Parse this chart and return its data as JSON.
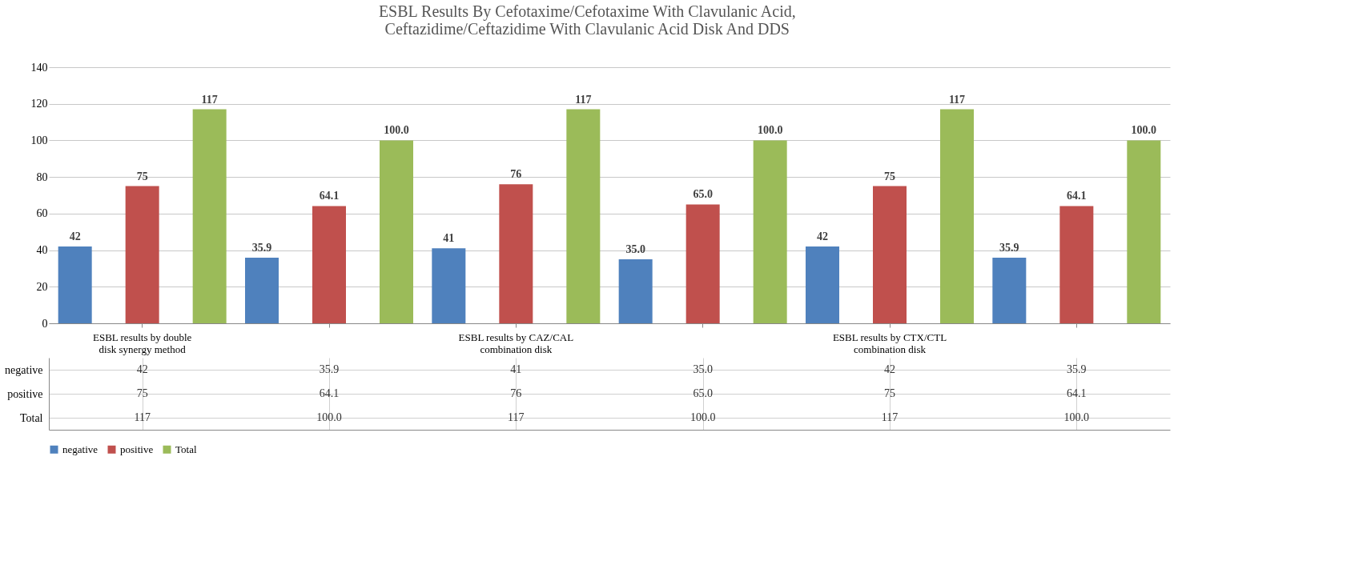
{
  "chart_data": {
    "type": "bar",
    "title": "ESBL Results By Cefotaxime/Cefotaxime With Clavulanic Acid, Ceftazidime/Ceftazidime With Clavulanic Acid Disk And DDS",
    "categories": [
      "ESBL results by double disk synergy method",
      null,
      "ESBL results by CAZ/CAL combination disk",
      null,
      "ESBL results by CTX/CTL combination disk",
      null
    ],
    "series": [
      {
        "name": "negative",
        "color": "#4f81bd",
        "values": [
          42,
          35.9,
          41,
          35.0,
          42,
          35.9
        ],
        "value_labels": [
          "42",
          "35.9",
          "41",
          "35.0",
          "42",
          "35.9"
        ]
      },
      {
        "name": "positive",
        "color": "#c0504d",
        "values": [
          75,
          64.1,
          76,
          65.0,
          75,
          64.1
        ],
        "value_labels": [
          "75",
          "64.1",
          "76",
          "65.0",
          "75",
          "64.1"
        ]
      },
      {
        "name": "Total",
        "color": "#9bbb59",
        "values": [
          117,
          100.0,
          117,
          100.0,
          117,
          100.0
        ],
        "value_labels": [
          "117",
          "100.0",
          "117",
          "100.0",
          "117",
          "100.0"
        ]
      }
    ],
    "ylim": [
      0,
      140
    ],
    "yticks": [
      0,
      20,
      40,
      60,
      80,
      100,
      120,
      140
    ],
    "grid": "y",
    "legend": "bottom"
  }
}
